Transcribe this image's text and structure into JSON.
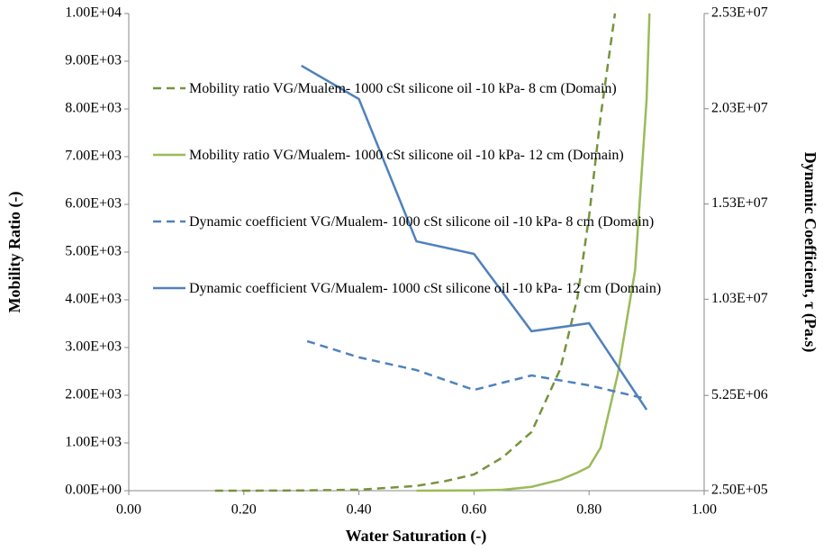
{
  "chart_data": {
    "type": "line",
    "x_label": "Water Saturation (-)",
    "y_label": "Mobility Ratio (-)",
    "y2_label": "Dynamic Coefficient, τ (Pa.s)",
    "xlim": [
      0,
      1
    ],
    "xticks": [
      {
        "value": 0,
        "label": "0.00"
      },
      {
        "value": 0.2,
        "label": "0.20"
      },
      {
        "value": 0.4,
        "label": "0.40"
      },
      {
        "value": 0.6,
        "label": "0.60"
      },
      {
        "value": 0.8,
        "label": "0.80"
      },
      {
        "value": 1,
        "label": "1.00"
      }
    ],
    "ylim": [
      0,
      10000
    ],
    "yticks": [
      {
        "value": 0,
        "label": "0.00E+00"
      },
      {
        "value": 1000,
        "label": "1.00E+03"
      },
      {
        "value": 2000,
        "label": "2.00E+03"
      },
      {
        "value": 3000,
        "label": "3.00E+03"
      },
      {
        "value": 4000,
        "label": "4.00E+03"
      },
      {
        "value": 5000,
        "label": "5.00E+03"
      },
      {
        "value": 6000,
        "label": "6.00E+03"
      },
      {
        "value": 7000,
        "label": "7.00E+03"
      },
      {
        "value": 8000,
        "label": "8.00E+03"
      },
      {
        "value": 9000,
        "label": "9.00E+03"
      },
      {
        "value": 10000,
        "label": "1.00E+04"
      }
    ],
    "y2lim": [
      250000,
      25300000
    ],
    "y2ticks": [
      {
        "value": 250000,
        "label": "2.50E+05"
      },
      {
        "value": 5250000,
        "label": "5.25E+06"
      },
      {
        "value": 10300000,
        "label": "1.03E+07"
      },
      {
        "value": 15300000,
        "label": "1.53E+07"
      },
      {
        "value": 20300000,
        "label": "2.03E+07"
      },
      {
        "value": 25300000,
        "label": "2.53E+07"
      }
    ],
    "grid": false,
    "series": [
      {
        "name": "Mobility ratio VG/Mualem- 1000 cSt silicone oil -10 kPa- 8 cm (Domain)",
        "color": "#77933c",
        "dash": true,
        "axis": "y",
        "x": [
          0.15,
          0.2,
          0.3,
          0.4,
          0.5,
          0.55,
          0.6,
          0.65,
          0.7,
          0.75,
          0.78,
          0.8,
          0.82,
          0.845
        ],
        "values": [
          0,
          0,
          5,
          20,
          100,
          200,
          340,
          700,
          1230,
          2550,
          4060,
          5750,
          7830,
          10000
        ]
      },
      {
        "name": "Mobility ratio VG/Mualem- 1000 cSt silicone oil -10 kPa- 12 cm (Domain)",
        "color": "#9bbb59",
        "dash": false,
        "axis": "y",
        "x": [
          0.5,
          0.6,
          0.65,
          0.7,
          0.75,
          0.78,
          0.8,
          0.82,
          0.85,
          0.88,
          0.9,
          0.905
        ],
        "values": [
          0,
          5,
          20,
          80,
          230,
          380,
          500,
          900,
          2450,
          4620,
          8200,
          10000
        ]
      },
      {
        "name": "Dynamic coefficient  VG/Mualem- 1000 cSt silicone oil -10 kPa- 8 cm (Domain)",
        "color": "#4f81bd",
        "dash": true,
        "axis": "y2",
        "x": [
          0.31,
          0.4,
          0.5,
          0.6,
          0.7,
          0.8,
          0.9
        ],
        "values": [
          8100000,
          7250000,
          6580000,
          5540000,
          6300000,
          5780000,
          5070000
        ]
      },
      {
        "name": "Dynamic coefficient  VG/Mualem- 1000 cSt silicone oil -10 kPa- 12 cm (Domain)",
        "color": "#4f81bd",
        "dash": false,
        "axis": "y2",
        "x": [
          0.3,
          0.4,
          0.5,
          0.6,
          0.7,
          0.8,
          0.9
        ],
        "values": [
          22560000,
          20810000,
          13340000,
          12680000,
          8620000,
          9040000,
          4500000
        ]
      }
    ]
  }
}
